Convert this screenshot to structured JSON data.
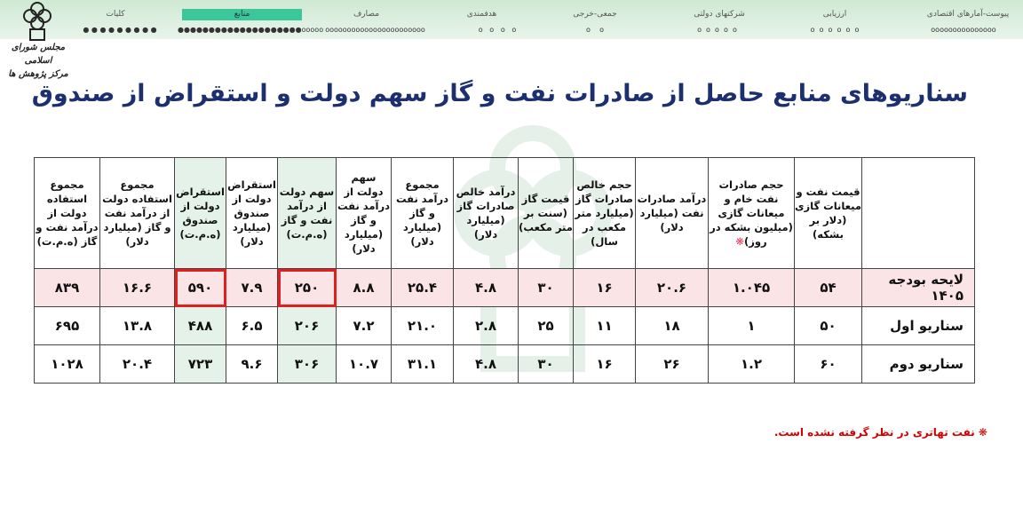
{
  "nav": {
    "items": [
      {
        "label": "پیوست-آمارهای اقتصادی",
        "dots": "ooooooooooooooo"
      },
      {
        "label": "ارزیابی",
        "dots": "o  o  o  o  o  o"
      },
      {
        "label": "شرکتهای دولتی",
        "dots": "o  o  o  o  o"
      },
      {
        "label": "جمعی-خرجی",
        "dots": "o    o"
      },
      {
        "label": "هدفمندی",
        "dots": "o   o   o   o"
      },
      {
        "label": "مصارف",
        "dots": "ooooooooooooooooooooooo"
      },
      {
        "label": "منابع",
        "dots": "●●●●●●●●●●●●●●●●●●●●ooooo",
        "active": true
      },
      {
        "label": "کلیات",
        "dots": "● ● ● ● ● ● ● ● ●"
      }
    ],
    "active_color": "#3cc79a"
  },
  "logo": {
    "line1": "مجلس شورای اسلامی",
    "line2": "مرکز پژوهش ها"
  },
  "title": "سناریوهای منابع حاصل از صادرات نفت و گاز سهم دولت و استقراض از صندوق",
  "table": {
    "headers": [
      "",
      "قیمت نفت و میعانات گازی (دلار بر بشکه)",
      "حجم صادرات نفت خام و میعانات گازی (میلیون بشکه در روز)",
      "درآمد صادرات نفت (میلیارد دلار)",
      "حجم خالص صادرات گاز (میلیارد متر مکعب در سال)",
      "قیمت گاز (سنت بر متر مکعب)",
      "درآمد خالص صادرات گاز (میلیارد دلار)",
      "مجموع درآمد نفت و گاز (میلیارد دلار)",
      "سهم دولت از درآمد نفت و گاز (میلیارد دلار)",
      "سهم دولت از درآمد نفت و گاز (ه.م.ت)",
      "استقراض دولت از صندوق (میلیارد دلار)",
      "استقراض دولت از صندوق (ه.م.ت)",
      "مجموع استفاده دولت از درآمد نفت و گاز (میلیارد دلار)",
      "مجموع استفاده دولت از درآمد نفت و گاز (ه.م.ت)"
    ],
    "header_star": "❋",
    "rows": [
      {
        "label": "لایحه بودجه ۱۴۰۵",
        "values": [
          "۵۴",
          "۱.۰۴۵",
          "۲۰.۶",
          "۱۶",
          "۳۰",
          "۴.۸",
          "۲۵.۴",
          "۸.۸",
          "۲۵۰",
          "۷.۹",
          "۵۹۰",
          "۱۶.۶",
          "۸۳۹"
        ]
      },
      {
        "label": "سناریو اول",
        "values": [
          "۵۰",
          "۱",
          "۱۸",
          "۱۱",
          "۲۵",
          "۲.۸",
          "۲۱.۰",
          "۷.۲",
          "۲۰۶",
          "۶.۵",
          "۴۸۸",
          "۱۳.۸",
          "۶۹۵"
        ]
      },
      {
        "label": "سناریو دوم",
        "values": [
          "۶۰",
          "۱.۲",
          "۲۶",
          "۱۶",
          "۳۰",
          "۴.۸",
          "۳۱.۱",
          "۱۰.۷",
          "۳۰۶",
          "۹.۶",
          "۷۲۳",
          "۲۰.۴",
          "۱۰۲۸"
        ]
      }
    ],
    "highlight_color": "#e4f2ea",
    "row1_color": "#fbe4e6",
    "box_color": "#e02020"
  },
  "footnote": "❋ نفت تهاتری در نظر گرفته نشده است."
}
